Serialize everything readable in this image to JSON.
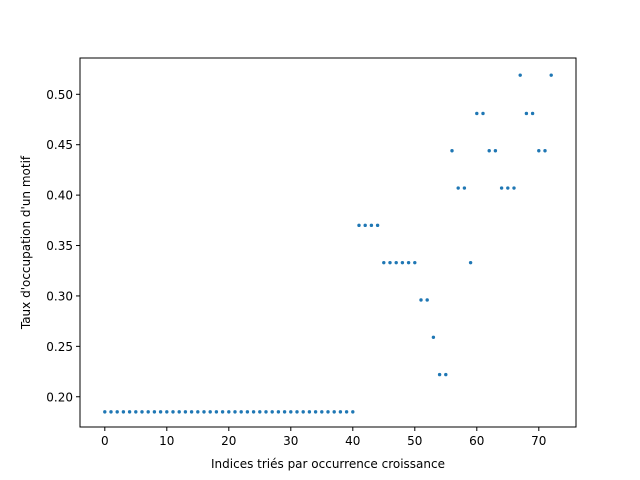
{
  "chart_data": {
    "type": "scatter",
    "title": "",
    "xlabel": "Indices triés par occurrence croissance",
    "ylabel": "Taux d'occupation d'un motif",
    "xlim": [
      -4,
      76
    ],
    "ylim": [
      0.17,
      0.536
    ],
    "xticks": [
      0,
      10,
      20,
      30,
      40,
      50,
      60,
      70
    ],
    "yticks": [
      0.2,
      0.25,
      0.3,
      0.35,
      0.4,
      0.45,
      0.5
    ],
    "xtick_labels": [
      "0",
      "10",
      "20",
      "30",
      "40",
      "50",
      "60",
      "70"
    ],
    "ytick_labels": [
      "0.20",
      "0.25",
      "0.30",
      "0.35",
      "0.40",
      "0.45",
      "0.50"
    ],
    "grid": false,
    "legend": "none",
    "marker_color": "#1f77b4",
    "x": [
      0,
      1,
      2,
      3,
      4,
      5,
      6,
      7,
      8,
      9,
      10,
      11,
      12,
      13,
      14,
      15,
      16,
      17,
      18,
      19,
      20,
      21,
      22,
      23,
      24,
      25,
      26,
      27,
      28,
      29,
      30,
      31,
      32,
      33,
      34,
      35,
      36,
      37,
      38,
      39,
      40,
      41,
      42,
      43,
      44,
      45,
      46,
      47,
      48,
      49,
      50,
      51,
      52,
      53,
      54,
      55,
      56,
      57,
      58,
      59,
      60,
      61,
      62,
      63,
      64,
      65,
      66,
      67,
      68,
      69,
      70,
      71,
      72
    ],
    "y": [
      0.185,
      0.185,
      0.185,
      0.185,
      0.185,
      0.185,
      0.185,
      0.185,
      0.185,
      0.185,
      0.185,
      0.185,
      0.185,
      0.185,
      0.185,
      0.185,
      0.185,
      0.185,
      0.185,
      0.185,
      0.185,
      0.185,
      0.185,
      0.185,
      0.185,
      0.185,
      0.185,
      0.185,
      0.185,
      0.185,
      0.185,
      0.185,
      0.185,
      0.185,
      0.185,
      0.185,
      0.185,
      0.185,
      0.185,
      0.185,
      0.185,
      0.37,
      0.37,
      0.37,
      0.37,
      0.333,
      0.333,
      0.333,
      0.333,
      0.333,
      0.333,
      0.296,
      0.296,
      0.259,
      0.222,
      0.222,
      0.444,
      0.407,
      0.407,
      0.333,
      0.481,
      0.481,
      0.444,
      0.444,
      0.407,
      0.407,
      0.407,
      0.519,
      0.481,
      0.481,
      0.444,
      0.444,
      0.519
    ]
  }
}
